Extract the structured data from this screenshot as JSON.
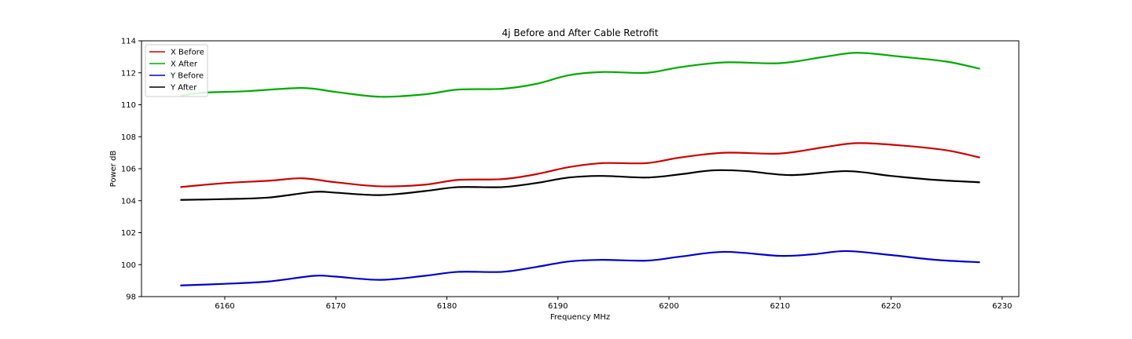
{
  "chart_data": {
    "type": "line",
    "title": "4j Before and After Cable Retrofit",
    "xlabel": "Frequency MHz",
    "ylabel": "Power dB",
    "xlim": [
      6152.5,
      6231.5
    ],
    "ylim": [
      98,
      114
    ],
    "xticks": [
      6160,
      6170,
      6180,
      6190,
      6200,
      6210,
      6220,
      6230
    ],
    "yticks": [
      98,
      100,
      102,
      104,
      106,
      108,
      110,
      112,
      114
    ],
    "grid": false,
    "legend_position": "top-left",
    "series": [
      {
        "name": "X Before",
        "color": "#cc0000",
        "x": [
          6156,
          6160,
          6164,
          6167,
          6170,
          6174,
          6178,
          6181,
          6185,
          6188,
          6191,
          6194,
          6198,
          6201,
          6205,
          6210,
          6214,
          6217,
          6221,
          6225,
          6228
        ],
        "y": [
          104.85,
          105.1,
          105.25,
          105.4,
          105.15,
          104.9,
          105.0,
          105.3,
          105.35,
          105.65,
          106.1,
          106.35,
          106.35,
          106.7,
          107.0,
          106.95,
          107.35,
          107.6,
          107.45,
          107.15,
          106.7
        ]
      },
      {
        "name": "X After",
        "color": "#00aa00",
        "x": [
          6156,
          6158,
          6162,
          6167,
          6170,
          6174,
          6178,
          6181,
          6185,
          6188,
          6191,
          6194,
          6198,
          6201,
          6205,
          6210,
          6214,
          6217,
          6221,
          6225,
          6228
        ],
        "y": [
          110.55,
          110.75,
          110.85,
          111.05,
          110.8,
          110.5,
          110.65,
          110.95,
          111.0,
          111.3,
          111.85,
          112.05,
          112.0,
          112.35,
          112.65,
          112.6,
          113.0,
          113.25,
          113.0,
          112.7,
          112.25
        ]
      },
      {
        "name": "Y Before",
        "color": "#0000cc",
        "x": [
          6156,
          6160,
          6164,
          6168,
          6170,
          6174,
          6178,
          6181,
          6185,
          6188,
          6191,
          6194,
          6198,
          6201,
          6205,
          6210,
          6213,
          6216,
          6220,
          6224,
          6228
        ],
        "y": [
          98.7,
          98.8,
          98.95,
          99.3,
          99.25,
          99.05,
          99.3,
          99.55,
          99.55,
          99.85,
          100.2,
          100.3,
          100.25,
          100.5,
          100.8,
          100.55,
          100.65,
          100.85,
          100.6,
          100.3,
          100.15
        ]
      },
      {
        "name": "Y After",
        "color": "#000000",
        "x": [
          6156,
          6160,
          6164,
          6168,
          6170,
          6174,
          6178,
          6181,
          6185,
          6188,
          6191,
          6194,
          6198,
          6201,
          6204,
          6207,
          6211,
          6216,
          6220,
          6224,
          6228
        ],
        "y": [
          104.05,
          104.1,
          104.2,
          104.55,
          104.5,
          104.35,
          104.6,
          104.85,
          104.85,
          105.1,
          105.45,
          105.55,
          105.45,
          105.65,
          105.9,
          105.85,
          105.6,
          105.85,
          105.55,
          105.3,
          105.15
        ]
      }
    ]
  }
}
